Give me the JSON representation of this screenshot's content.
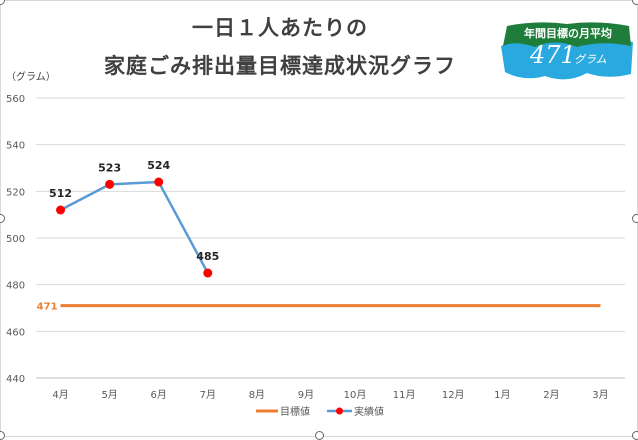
{
  "title": {
    "line1": "一日１人あたりの",
    "line2": "家庭ごみ排出量目標達成状況グラフ"
  },
  "badge": {
    "label": "年間目標の月平均",
    "value": "471",
    "unit": "グラム",
    "color_dark": "#1e7d3a",
    "color_light": "#2aa9e0"
  },
  "chart_data": {
    "type": "line",
    "ylabel": "（グラム）",
    "categories": [
      "4月",
      "5月",
      "6月",
      "7月",
      "8月",
      "9月",
      "10月",
      "11月",
      "12月",
      "1月",
      "2月",
      "3月"
    ],
    "ylim": [
      440,
      560
    ],
    "yticks": [
      440,
      460,
      480,
      500,
      520,
      540,
      560
    ],
    "grid": true,
    "legend_position": "bottom",
    "series": [
      {
        "name": "目標値",
        "color": "#ed7d31",
        "values": [
          471,
          471,
          471,
          471,
          471,
          471,
          471,
          471,
          471,
          471,
          471,
          471
        ],
        "label_first": "471"
      },
      {
        "name": "実績値",
        "color": "#5b9bd5",
        "marker_color": "#ff0000",
        "values": [
          512,
          523,
          524,
          485,
          null,
          null,
          null,
          null,
          null,
          null,
          null,
          null
        ]
      }
    ]
  }
}
